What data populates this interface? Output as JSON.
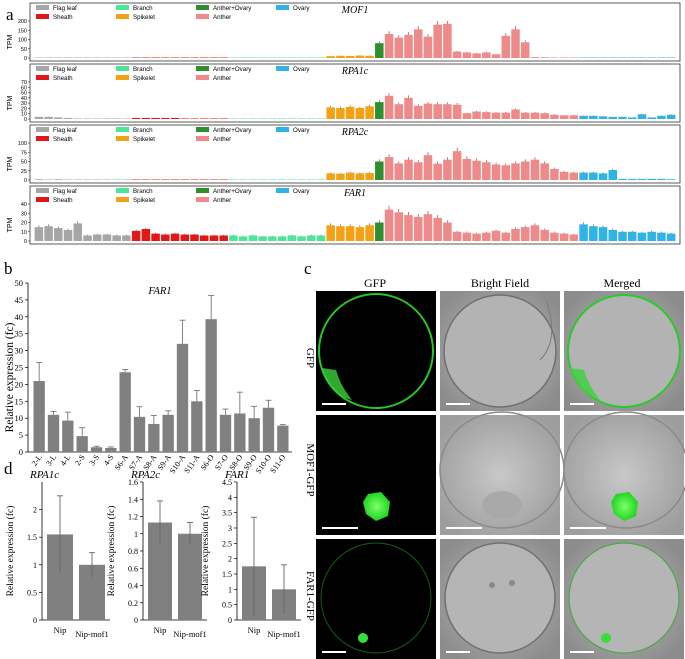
{
  "panel_labels": {
    "a": "a",
    "b": "b",
    "c": "c",
    "d": "d"
  },
  "legend": [
    {
      "label": "Flag leaf",
      "color": "#a6a6a6"
    },
    {
      "label": "Branch",
      "color": "#4de59a"
    },
    {
      "label": "Anther+Ovary",
      "color": "#2f8f2f"
    },
    {
      "label": "Ovary",
      "color": "#30b4e6"
    },
    {
      "label": "Sheath",
      "color": "#e01818"
    },
    {
      "label": "Spikelet",
      "color": "#f2a214"
    },
    {
      "label": "Anther",
      "color": "#ee8a8a"
    }
  ],
  "microscopy": {
    "columns": [
      "GFP",
      "Bright Field",
      "Merged"
    ],
    "rows": [
      "GFP",
      "MOF1-GFP",
      "FAR1-GFP"
    ]
  },
  "chart_data": [
    {
      "type": "bar",
      "title": "MOF1",
      "ylabel": "TPM",
      "ylim": [
        0,
        200
      ],
      "yticks": [
        0,
        50,
        100,
        150,
        200
      ],
      "groups": [
        {
          "name": "Flag leaf",
          "count": 10
        },
        {
          "name": "Sheath",
          "count": 10
        },
        {
          "name": "Branch",
          "count": 10
        },
        {
          "name": "Spikelet",
          "count": 5
        },
        {
          "name": "Anther+Ovary",
          "count": 1
        },
        {
          "name": "Anther",
          "count": 20
        },
        {
          "name": "Ovary",
          "count": 10
        }
      ],
      "values": [
        2,
        1,
        2,
        1,
        1,
        0,
        0,
        0,
        0,
        0,
        0,
        0,
        0,
        0,
        0,
        1,
        1,
        0,
        0,
        0,
        0,
        0,
        0,
        0,
        0,
        0,
        0,
        0,
        0,
        0,
        10,
        12,
        11,
        13,
        12,
        80,
        130,
        110,
        125,
        155,
        115,
        180,
        185,
        35,
        30,
        25,
        30,
        20,
        120,
        155,
        85,
        5,
        4,
        3,
        2,
        1,
        1,
        1,
        1,
        0,
        0,
        0,
        0,
        0,
        0,
        0
      ]
    },
    {
      "type": "bar",
      "title": "RPA1c",
      "ylabel": "TPM",
      "ylim": [
        0,
        70
      ],
      "yticks": [
        0,
        10,
        20,
        30,
        40,
        50,
        60,
        70
      ],
      "groups": [
        {
          "name": "Flag leaf",
          "count": 10
        },
        {
          "name": "Sheath",
          "count": 10
        },
        {
          "name": "Branch",
          "count": 10
        },
        {
          "name": "Spikelet",
          "count": 5
        },
        {
          "name": "Anther+Ovary",
          "count": 1
        },
        {
          "name": "Anther",
          "count": 20
        },
        {
          "name": "Ovary",
          "count": 10
        }
      ],
      "values": [
        4,
        4,
        3,
        2,
        1,
        1,
        1,
        1,
        1,
        1,
        2,
        2,
        2,
        2,
        2,
        1,
        1,
        1,
        1,
        1,
        1,
        1,
        1,
        1,
        1,
        1,
        1,
        1,
        1,
        1,
        22,
        21,
        23,
        21,
        24,
        32,
        44,
        28,
        40,
        25,
        29,
        28,
        28,
        27,
        11,
        14,
        13,
        12,
        12,
        18,
        12,
        12,
        11,
        8,
        7,
        7,
        6,
        6,
        5,
        4,
        4,
        3,
        9,
        3,
        6,
        8
      ]
    },
    {
      "type": "bar",
      "title": "RPA2c",
      "ylabel": "TPM",
      "ylim": [
        0,
        100
      ],
      "yticks": [
        0,
        25,
        50,
        75,
        100
      ],
      "groups": [
        {
          "name": "Flag leaf",
          "count": 10
        },
        {
          "name": "Sheath",
          "count": 10
        },
        {
          "name": "Branch",
          "count": 10
        },
        {
          "name": "Spikelet",
          "count": 5
        },
        {
          "name": "Anther+Ovary",
          "count": 1
        },
        {
          "name": "Anther",
          "count": 20
        },
        {
          "name": "Ovary",
          "count": 10
        }
      ],
      "values": [
        2,
        1,
        2,
        1,
        1,
        1,
        1,
        1,
        1,
        1,
        1,
        1,
        1,
        1,
        1,
        1,
        1,
        1,
        1,
        1,
        0,
        0,
        0,
        0,
        0,
        0,
        0,
        0,
        0,
        0,
        18,
        17,
        20,
        18,
        19,
        50,
        62,
        45,
        55,
        48,
        67,
        44,
        55,
        78,
        57,
        52,
        48,
        42,
        40,
        45,
        50,
        55,
        45,
        30,
        22,
        20,
        20,
        20,
        18,
        27,
        3,
        3,
        3,
        3,
        3,
        2
      ]
    },
    {
      "type": "bar",
      "title": "FAR1",
      "ylabel": "TPM",
      "ylim": [
        0,
        40
      ],
      "yticks": [
        0,
        10,
        20,
        30,
        40
      ],
      "groups": [
        {
          "name": "Flag leaf",
          "count": 10
        },
        {
          "name": "Sheath",
          "count": 10
        },
        {
          "name": "Branch",
          "count": 10
        },
        {
          "name": "Spikelet",
          "count": 5
        },
        {
          "name": "Anther+Ovary",
          "count": 1
        },
        {
          "name": "Anther",
          "count": 20
        },
        {
          "name": "Ovary",
          "count": 10
        }
      ],
      "values": [
        15,
        16,
        14,
        12,
        19,
        6,
        7,
        7,
        6,
        6,
        11,
        13,
        8,
        7,
        8,
        7,
        7,
        6,
        6,
        6,
        6,
        5,
        6,
        5,
        5,
        5,
        6,
        5,
        6,
        6,
        17,
        16,
        16,
        15,
        17,
        20,
        34,
        31,
        28,
        26,
        29,
        25,
        20,
        10,
        9,
        8,
        9,
        11,
        9,
        13,
        15,
        17,
        12,
        9,
        8,
        7,
        18,
        16,
        15,
        12,
        10,
        10,
        9,
        10,
        9,
        8
      ]
    },
    {
      "type": "bar",
      "title": "FAR1",
      "ylabel": "Relative expression (fc)",
      "ylim": [
        0,
        50
      ],
      "yticks": [
        0,
        5,
        10,
        15,
        20,
        25,
        30,
        35,
        40,
        45,
        50
      ],
      "categories": [
        "2-L",
        "3-L",
        "4-L",
        "2-S",
        "3-S",
        "4-S",
        "S6-A",
        "S7-A",
        "S8-A",
        "S9-A",
        "S10-A",
        "S11-A",
        "S6-O",
        "S7-O",
        "S8-O",
        "S9-O",
        "S10-O",
        "S11-O"
      ],
      "values": [
        21,
        11,
        9.3,
        4.7,
        1.4,
        1.2,
        23.6,
        10.4,
        8.3,
        11,
        32,
        15,
        39.3,
        11,
        11.4,
        10,
        13.1,
        7.8
      ],
      "errors": [
        5.5,
        1,
        2.5,
        2.5,
        0.3,
        0.3,
        0.8,
        3,
        2.5,
        1.2,
        7,
        3.2,
        7,
        1.7,
        6.3,
        3.5,
        2.2,
        0.3
      ]
    },
    {
      "type": "bar",
      "title": "RPA1c",
      "ylabel": "Relative expression (fc)",
      "ylim": [
        0,
        2.5
      ],
      "yticks": [
        0,
        0.5,
        1,
        1.5,
        2
      ],
      "categories": [
        "Nip",
        "Nip-mof1"
      ],
      "values": [
        1.55,
        1.0
      ],
      "errors": [
        0.7,
        0.22
      ]
    },
    {
      "type": "bar",
      "title": "RPA2c",
      "ylabel": "Relative expression (fc)",
      "ylim": [
        0,
        1.6
      ],
      "yticks": [
        0,
        0.2,
        0.4,
        0.6,
        0.8,
        1,
        1.2,
        1.4,
        1.6
      ],
      "categories": [
        "Nip",
        "Nip-mof1"
      ],
      "values": [
        1.13,
        1.0
      ],
      "errors": [
        0.25,
        0.13
      ]
    },
    {
      "type": "bar",
      "title": "FAR1",
      "ylabel": "Relative expression (fc)",
      "ylim": [
        0,
        4.5
      ],
      "yticks": [
        0,
        0.5,
        1,
        1.5,
        2,
        2.5,
        3,
        3.5,
        4,
        4.5
      ],
      "categories": [
        "Nip",
        "Nip-mof1"
      ],
      "values": [
        1.75,
        1.0
      ],
      "errors": [
        1.6,
        0.8
      ]
    }
  ]
}
